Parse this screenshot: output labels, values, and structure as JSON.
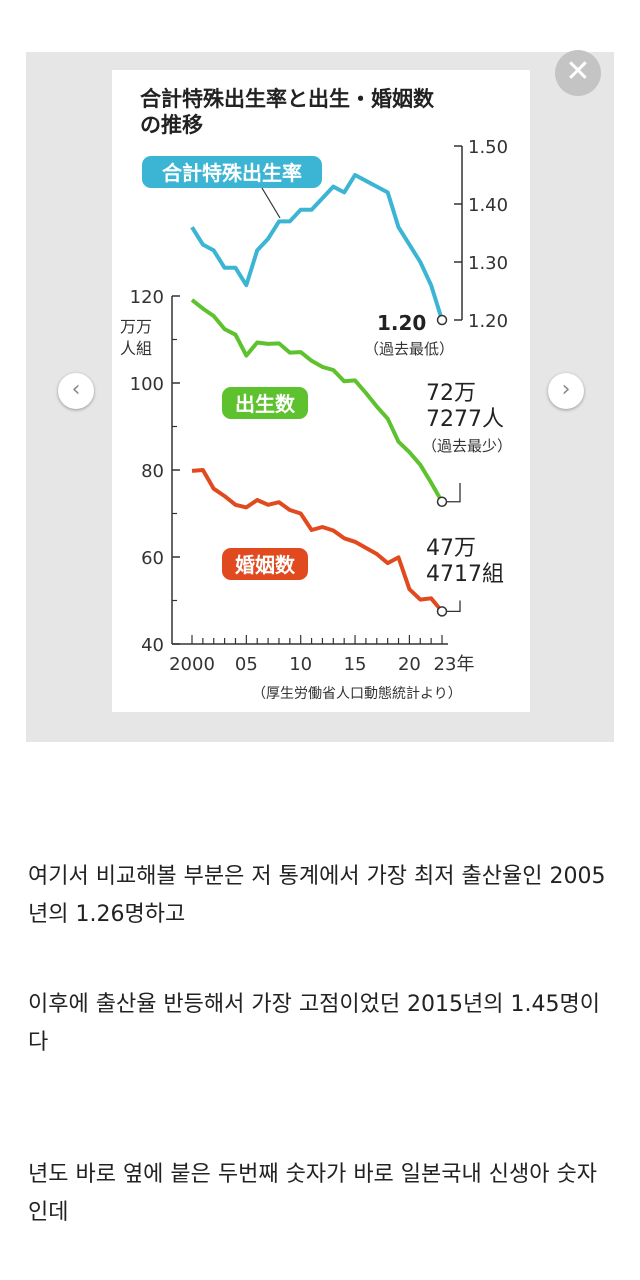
{
  "viewer": {
    "close_icon": "close-icon",
    "prev_icon": "chevron-left-icon",
    "next_icon": "chevron-right-icon"
  },
  "chart_data": {
    "type": "line",
    "title": "合計特殊出生率と出生・婚姻数の推移",
    "source": "（厚生労働省人口動態統計より）",
    "x": [
      2000,
      2001,
      2002,
      2003,
      2004,
      2005,
      2006,
      2007,
      2008,
      2009,
      2010,
      2011,
      2012,
      2013,
      2014,
      2015,
      2016,
      2017,
      2018,
      2019,
      2020,
      2021,
      2022,
      2023
    ],
    "x_ticks": [
      {
        "value": 2000,
        "label": "2000"
      },
      {
        "value": 2005,
        "label": "05"
      },
      {
        "value": 2010,
        "label": "10"
      },
      {
        "value": 2015,
        "label": "15"
      },
      {
        "value": 2020,
        "label": "20"
      },
      {
        "value": 2023,
        "label": "23年"
      }
    ],
    "left_axis": {
      "unit": [
        "万",
        "万",
        "人",
        "組"
      ],
      "ylim": [
        40,
        120
      ],
      "ticks": [
        40,
        60,
        80,
        100,
        120
      ]
    },
    "right_axis": {
      "ylim": [
        1.2,
        1.5
      ],
      "ticks": [
        "1.20",
        "1.30",
        "1.40",
        "1.50"
      ]
    },
    "series": [
      {
        "name": "合計特殊出生率",
        "color": "#3bb5d3",
        "axis": "right",
        "values": [
          1.36,
          1.33,
          1.32,
          1.29,
          1.29,
          1.26,
          1.32,
          1.34,
          1.37,
          1.37,
          1.39,
          1.39,
          1.41,
          1.43,
          1.42,
          1.45,
          1.44,
          1.43,
          1.42,
          1.36,
          1.33,
          1.3,
          1.26,
          1.2
        ]
      },
      {
        "name": "出生数",
        "color": "#5dc22d",
        "axis": "left",
        "values": [
          119.1,
          117.1,
          115.4,
          112.4,
          111.1,
          106.3,
          109.3,
          109.0,
          109.1,
          107.0,
          107.1,
          105.1,
          103.7,
          103.0,
          100.4,
          100.6,
          97.7,
          94.6,
          91.8,
          86.5,
          84.1,
          81.2,
          77.1,
          72.7
        ]
      },
      {
        "name": "婚姻数",
        "color": "#e04a1e",
        "axis": "left",
        "values": [
          79.8,
          80.0,
          75.7,
          74.0,
          72.0,
          71.4,
          73.1,
          72.0,
          72.6,
          70.8,
          70.0,
          66.2,
          66.9,
          66.1,
          64.3,
          63.5,
          62.1,
          60.7,
          58.6,
          59.9,
          52.6,
          50.2,
          50.5,
          47.5
        ]
      }
    ],
    "annotations": {
      "rate_value": "1.20",
      "rate_note": "（過去最低）",
      "births_line1": "72万",
      "births_line2": "7277人",
      "births_note": "（過去最少）",
      "marriages_line1": "47万",
      "marriages_line2": "4717組"
    }
  },
  "paragraphs": [
    "여기서 비교해볼 부분은 저 통계에서 가장 최저 출산율인 2005년의 1.26명하고",
    "이후에 출산율 반등해서 가장 고점이었던 2015년의 1.45명이다",
    "년도 바로 옆에 붙은 두번째 숫자가 바로 일본국내 신생아 숫자인데"
  ]
}
